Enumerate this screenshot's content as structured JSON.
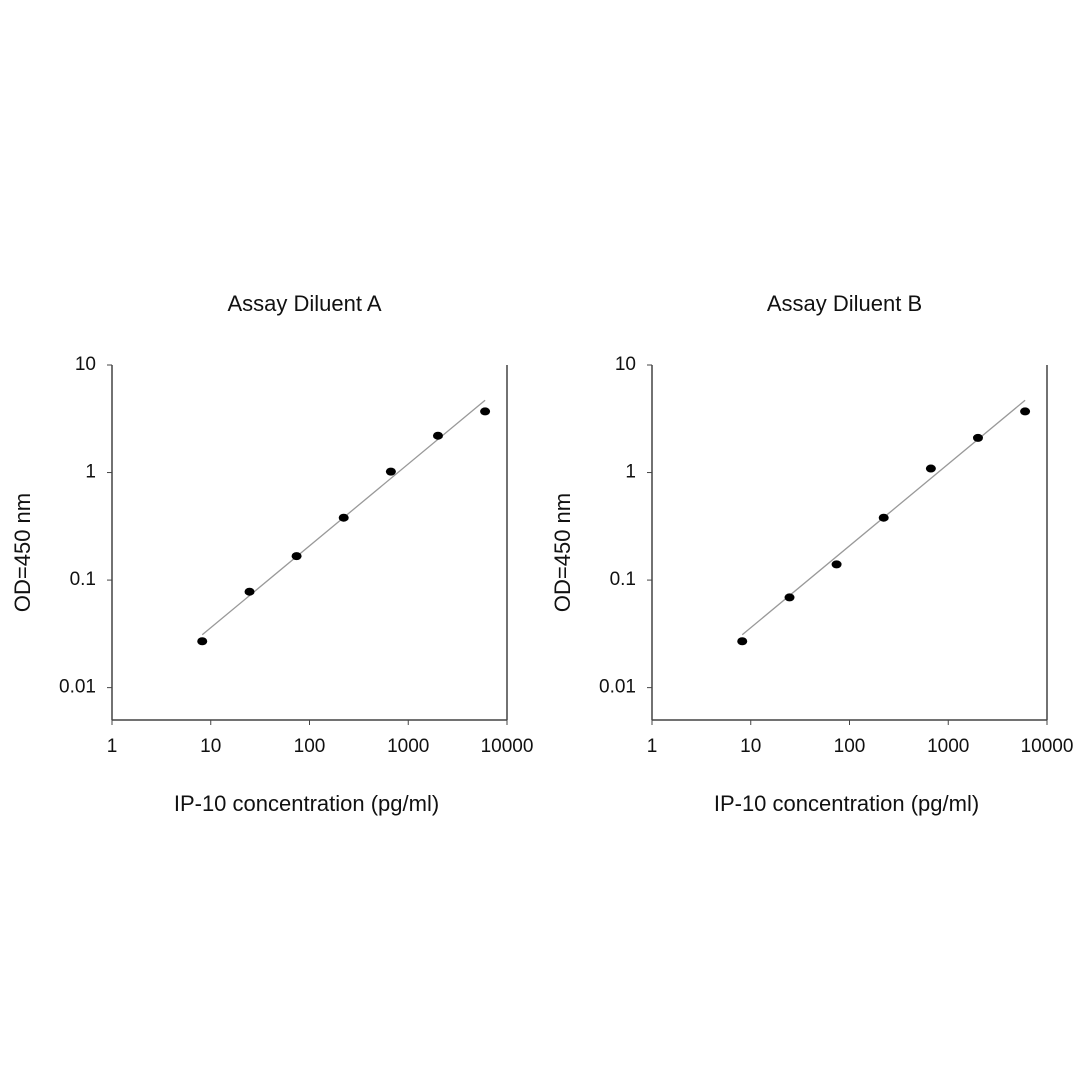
{
  "chart_data": [
    {
      "type": "scatter",
      "title": "Assay Diluent A",
      "x_label": "IP-10 concentration (pg/ml)",
      "y_label": "OD=450 nm",
      "x": [
        8.2,
        24.7,
        74,
        222,
        667,
        2000,
        6000
      ],
      "values": [
        0.027,
        0.078,
        0.167,
        0.38,
        1.02,
        2.2,
        3.7
      ],
      "color": "#000000",
      "fit": {
        "x": [
          8.2,
          6000
        ],
        "y": [
          0.031,
          4.7
        ],
        "color": "#999999"
      },
      "xscale": "log",
      "yscale": "log",
      "xlim": [
        1,
        10000
      ],
      "xticks": [
        1,
        10,
        100,
        1000,
        10000
      ],
      "ylim": [
        0.005,
        10
      ],
      "yticks": [
        0.01,
        0.1,
        1,
        10
      ]
    },
    {
      "type": "scatter",
      "title": "Assay Diluent B",
      "x_label": "IP-10 concentration (pg/ml)",
      "y_label": "OD=450 nm",
      "x": [
        8.2,
        24.7,
        74,
        222,
        667,
        2000,
        6000
      ],
      "values": [
        0.027,
        0.069,
        0.14,
        0.38,
        1.09,
        2.1,
        3.7
      ],
      "color": "#000000",
      "fit": {
        "x": [
          8.2,
          6000
        ],
        "y": [
          0.031,
          4.7
        ],
        "color": "#999999"
      },
      "xscale": "log",
      "yscale": "log",
      "xlim": [
        1,
        10000
      ],
      "xticks": [
        1,
        10,
        100,
        1000,
        10000
      ],
      "ylim": [
        0.005,
        10
      ],
      "yticks": [
        0.01,
        0.1,
        1,
        10
      ]
    }
  ]
}
